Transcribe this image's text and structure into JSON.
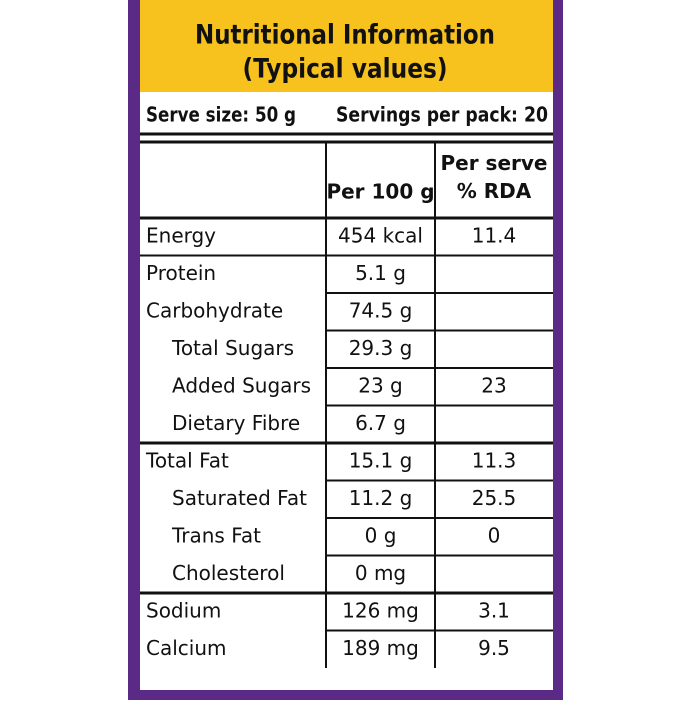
{
  "header": {
    "title": [
      "Nutritional Information",
      "(Typical values)"
    ]
  },
  "serve_size": "Serve size: 50 g",
  "servings": "Servings per pack: 20",
  "table": {
    "columns": [
      "Per 100 g",
      "Per serve\n% RDA"
    ],
    "rows": [
      {
        "label": "Energy",
        "per_100g": "454 kcal",
        "rda": "11.4"
      },
      {
        "label": "Protein",
        "per_100g": "5.1 g",
        "rda": null
      },
      {
        "label": "Carbohydrate",
        "per_100g": "74.5 g",
        "rda": null
      },
      {
        "label": "Total Sugars",
        "per_100g": "29.3 g",
        "rda": null,
        "sub": true
      },
      {
        "label": "Added Sugars",
        "per_100g": "23 g",
        "rda": "23",
        "sub": true
      },
      {
        "label": "Dietary Fibre",
        "per_100g": "6.7 g",
        "rda": null,
        "sub": true
      },
      {
        "label": "Total Fat",
        "per_100g": "15.1 g",
        "rda": "11.3"
      },
      {
        "label": "Saturated Fat",
        "per_100g": "11.2 g",
        "rda": "25.5",
        "sub": true
      },
      {
        "label": "Trans Fat",
        "per_100g": "0 g",
        "rda": "0",
        "sub": true
      },
      {
        "label": "Cholesterol",
        "per_100g": "0 mg",
        "rda": null,
        "sub": true
      },
      {
        "label": "Sodium",
        "per_100g": "126 mg",
        "rda": "3.1"
      },
      {
        "label": "Calcium",
        "per_100g": "189 mg",
        "rda": "9.5"
      }
    ]
  }
}
